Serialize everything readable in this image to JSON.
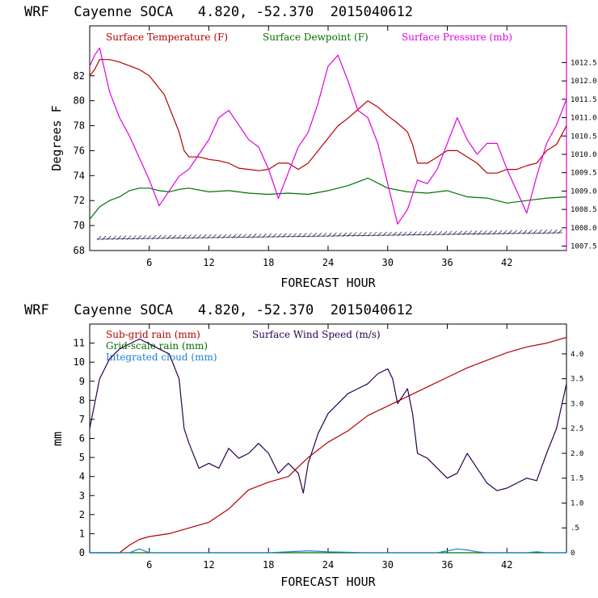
{
  "chart_data": [
    {
      "type": "line",
      "title": "WRF   Cayenne SOCA   4.820, -52.370  2015040612",
      "xlabel": "FORECAST HOUR",
      "ylabel": "Degrees F",
      "xlim": [
        0,
        48
      ],
      "ylim": [
        68,
        86
      ],
      "x_ticks": [
        "6",
        "12",
        "18",
        "24",
        "30",
        "36",
        "42"
      ],
      "y_ticks": [
        "68",
        "70",
        "72",
        "74",
        "76",
        "78",
        "80",
        "82"
      ],
      "y2_label": "Surface Pressure (mb)",
      "y2lim": [
        1007.38,
        1013.5
      ],
      "y2_ticks": [
        "1007.5",
        "1008.0",
        "1008.5",
        "1009.0",
        "1009.5",
        "1010.0",
        "1010.5",
        "1011.0",
        "1011.5",
        "1012.0",
        "1012.5"
      ],
      "series": [
        {
          "name": "Surface Temperature (F)",
          "color": "#b40000",
          "axis": "left",
          "x": [
            0,
            0.5,
            1,
            2,
            3,
            4,
            5,
            6,
            7,
            7.5,
            8,
            9,
            9.5,
            10,
            11,
            12,
            13,
            14,
            15,
            16,
            17,
            18,
            19,
            20,
            21,
            22,
            23,
            24,
            25,
            26,
            27,
            28,
            29,
            30,
            31,
            32,
            32.5,
            33,
            34,
            35,
            36,
            37,
            38,
            39,
            40,
            41,
            42,
            43,
            44,
            45,
            46,
            47,
            48
          ],
          "y": [
            82,
            82.5,
            83.3,
            83.3,
            83.1,
            82.8,
            82.5,
            82,
            81,
            80.5,
            79.5,
            77.5,
            76,
            75.5,
            75.5,
            75.3,
            75.2,
            75,
            74.6,
            74.5,
            74.4,
            74.5,
            75,
            75,
            74.5,
            75,
            76,
            77,
            78,
            78.6,
            79.3,
            80,
            79.5,
            78.8,
            78.2,
            77.5,
            76.5,
            75,
            75,
            75.5,
            76,
            76,
            75.5,
            75,
            74.2,
            74.2,
            74.5,
            74.5,
            74.8,
            75,
            76,
            76.5,
            78
          ]
        },
        {
          "name": "Surface Dewpoint (F)",
          "color": "#007000",
          "axis": "left",
          "x": [
            0,
            1,
            2,
            3,
            4,
            5,
            6,
            7,
            8,
            9,
            10,
            12,
            14,
            16,
            18,
            20,
            22,
            24,
            26,
            28,
            30,
            32,
            34,
            36,
            38,
            40,
            42,
            44,
            46,
            48
          ],
          "y": [
            70.5,
            71.5,
            72,
            72.3,
            72.8,
            73,
            73,
            72.8,
            72.7,
            72.9,
            73,
            72.7,
            72.8,
            72.6,
            72.5,
            72.6,
            72.5,
            72.8,
            73.2,
            73.8,
            73,
            72.7,
            72.6,
            72.8,
            72.3,
            72.2,
            71.8,
            72,
            72.2,
            72.3
          ]
        },
        {
          "name": "Surface Pressure (mb)",
          "color": "#e000e0",
          "axis": "right",
          "x": [
            0,
            0.5,
            1,
            2,
            3,
            4,
            5,
            6,
            7,
            8,
            9,
            10,
            11,
            12,
            13,
            14,
            15,
            16,
            17,
            18,
            19,
            20,
            21,
            22,
            23,
            24,
            25,
            26,
            27,
            28,
            29,
            30,
            31,
            32,
            33,
            34,
            35,
            36,
            37,
            38,
            39,
            40,
            41,
            42,
            43,
            44,
            45,
            46,
            47,
            48
          ],
          "y": [
            1012.4,
            1012.7,
            1012.9,
            1011.7,
            1011,
            1010.5,
            1009.9,
            1009.3,
            1008.6,
            1009,
            1009.4,
            1009.6,
            1010,
            1010.4,
            1011,
            1011.2,
            1010.8,
            1010.4,
            1010.2,
            1009.6,
            1008.8,
            1009.5,
            1010.2,
            1010.6,
            1011.4,
            1012.4,
            1012.7,
            1012,
            1011.2,
            1011,
            1010.3,
            1009.2,
            1008.1,
            1008.5,
            1009.3,
            1009.2,
            1009.6,
            1010.3,
            1011,
            1010.4,
            1010,
            1010.3,
            1010.3,
            1009.6,
            1009,
            1008.4,
            1009.4,
            1010.3,
            1010.8,
            1011.5
          ]
        }
      ],
      "wind_barbs": "yes"
    },
    {
      "type": "line",
      "title": "WRF   Cayenne SOCA   4.820, -52.370  2015040612",
      "xlabel": "FORECAST HOUR",
      "ylabel": "mm",
      "xlim": [
        0,
        48
      ],
      "ylim": [
        0,
        12
      ],
      "x_ticks": [
        "6",
        "12",
        "18",
        "24",
        "30",
        "36",
        "42"
      ],
      "y_ticks": [
        "0",
        "1",
        "2",
        "3",
        "4",
        "5",
        "6",
        "7",
        "8",
        "9",
        "10",
        "11"
      ],
      "y2_label": "Surface Wind Speed (m/s)",
      "y2lim": [
        0,
        4.6
      ],
      "y2_ticks": [
        "0",
        ".5",
        "1.0",
        "1.5",
        "2.0",
        "2.5",
        "3.0",
        "3.5",
        "4.0"
      ],
      "series": [
        {
          "name": "Sub-grid rain (mm)",
          "color": "#b40000",
          "axis": "left",
          "x": [
            0,
            3,
            4,
            5,
            6,
            8,
            10,
            12,
            14,
            16,
            18,
            20,
            22,
            24,
            26,
            28,
            30,
            32,
            34,
            36,
            38,
            40,
            42,
            44,
            46,
            48
          ],
          "y": [
            0,
            0,
            0.4,
            0.7,
            0.85,
            1,
            1.3,
            1.6,
            2.3,
            3.3,
            3.7,
            4,
            5,
            5.8,
            6.4,
            7.2,
            7.7,
            8.2,
            8.7,
            9.2,
            9.7,
            10.1,
            10.5,
            10.8,
            11,
            11.3
          ]
        },
        {
          "name": "Grid-scale rain (mm)",
          "color": "#007000",
          "axis": "left",
          "x": [
            0,
            48
          ],
          "y": [
            0,
            0
          ]
        },
        {
          "name": "Integrated cloud (mm)",
          "color": "#1a7fd0",
          "axis": "left",
          "x": [
            0,
            4,
            4.5,
            5,
            5.5,
            6,
            18,
            20,
            22,
            24,
            28,
            35,
            36,
            37,
            38,
            39,
            40,
            42,
            44,
            45,
            46,
            48
          ],
          "y": [
            0,
            0,
            0.1,
            0.2,
            0.1,
            0,
            0,
            0.05,
            0.1,
            0.05,
            0,
            0,
            0.1,
            0.2,
            0.15,
            0.05,
            0,
            0,
            0,
            0.05,
            0,
            0
          ]
        },
        {
          "name": "Surface Wind Speed (m/s)",
          "color": "#2a0050",
          "axis": "right",
          "x": [
            0,
            1,
            2,
            3,
            4,
            5,
            6,
            7,
            8,
            9,
            9.5,
            10,
            11,
            12,
            13,
            14,
            15,
            16,
            17,
            18,
            19,
            20,
            21,
            21.5,
            22,
            23,
            24,
            25,
            26,
            27,
            28,
            29,
            30,
            30.5,
            31,
            32,
            32.5,
            33,
            34,
            35,
            36,
            37,
            38,
            39,
            40,
            41,
            42,
            43,
            44,
            45,
            46,
            47,
            48
          ],
          "y": [
            2.5,
            3.5,
            3.9,
            4.1,
            4.2,
            4.3,
            4.2,
            4.1,
            4.0,
            3.5,
            2.5,
            2.2,
            1.7,
            1.8,
            1.7,
            2.1,
            1.9,
            2.0,
            2.2,
            2.0,
            1.6,
            1.8,
            1.6,
            1.2,
            1.8,
            2.4,
            2.8,
            3.0,
            3.2,
            3.3,
            3.4,
            3.6,
            3.7,
            3.5,
            3.0,
            3.3,
            2.8,
            2.0,
            1.9,
            1.7,
            1.5,
            1.6,
            2.0,
            1.7,
            1.4,
            1.25,
            1.3,
            1.4,
            1.5,
            1.45,
            2.0,
            2.5,
            3.4
          ]
        }
      ]
    }
  ]
}
